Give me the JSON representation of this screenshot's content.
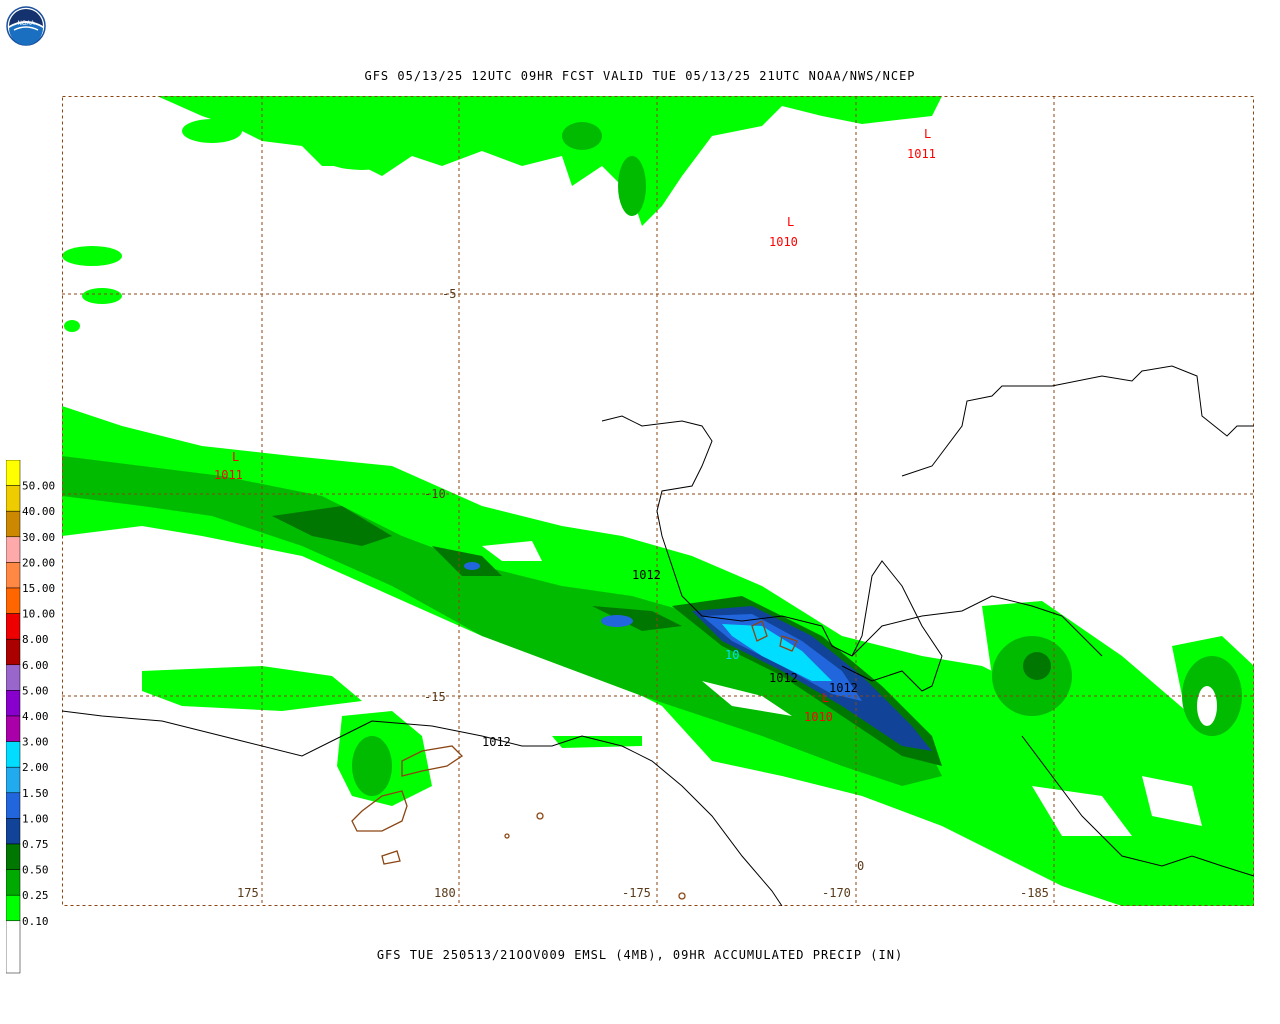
{
  "header": {
    "title": "GFS 05/13/25 12UTC 09HR FCST VALID TUE 05/13/25 21UTC NOAA/NWS/NCEP",
    "logo_text": "NOAA"
  },
  "footer": {
    "title": "GFS TUE 250513/21OOV009 EMSL (4MB), 09HR ACCUMULATED PRECIP (IN)"
  },
  "colors": {
    "grid": "#8b4513",
    "coast": "#8b4513",
    "isobar": "#000000",
    "low": "#ff0000",
    "precip_light": "#00ff00",
    "precip_mid": "#00bb00",
    "precip_dark": "#007700",
    "precip_blue": "#0066cc",
    "precip_cyan": "#00ddff"
  },
  "map": {
    "lon_labels": [
      "175",
      "180",
      "-175",
      "-170",
      "-185"
    ],
    "lat_labels": [
      "-5",
      "-10",
      "-15"
    ],
    "stray_label": "0",
    "lows": [
      {
        "symbol": "L",
        "value": "1011"
      },
      {
        "symbol": "L",
        "value": "1010"
      },
      {
        "symbol": "L",
        "value": "1011"
      },
      {
        "symbol": "L",
        "value": "1010"
      }
    ],
    "isobar_labels": [
      "1012",
      "1012",
      "1012",
      "1012"
    ],
    "small_label": "10"
  },
  "legend": {
    "items": [
      {
        "value": "50.00",
        "color": "#ffff00"
      },
      {
        "value": "40.00",
        "color": "#eecc00"
      },
      {
        "value": "30.00",
        "color": "#cc8800"
      },
      {
        "value": "20.00",
        "color": "#ffaaaa"
      },
      {
        "value": "15.00",
        "color": "#ff8844"
      },
      {
        "value": "10.00",
        "color": "#ff6600"
      },
      {
        "value": "8.00",
        "color": "#ee0000"
      },
      {
        "value": "6.00",
        "color": "#aa0000"
      },
      {
        "value": "5.00",
        "color": "#9966cc"
      },
      {
        "value": "4.00",
        "color": "#8800cc"
      },
      {
        "value": "3.00",
        "color": "#aa00aa"
      },
      {
        "value": "2.00",
        "color": "#00ddff"
      },
      {
        "value": "1.50",
        "color": "#22aaee"
      },
      {
        "value": "1.00",
        "color": "#2266dd"
      },
      {
        "value": "0.75",
        "color": "#114499"
      },
      {
        "value": "0.50",
        "color": "#007700"
      },
      {
        "value": "0.25",
        "color": "#00aa00"
      },
      {
        "value": "0.10",
        "color": "#00ff00"
      }
    ]
  }
}
